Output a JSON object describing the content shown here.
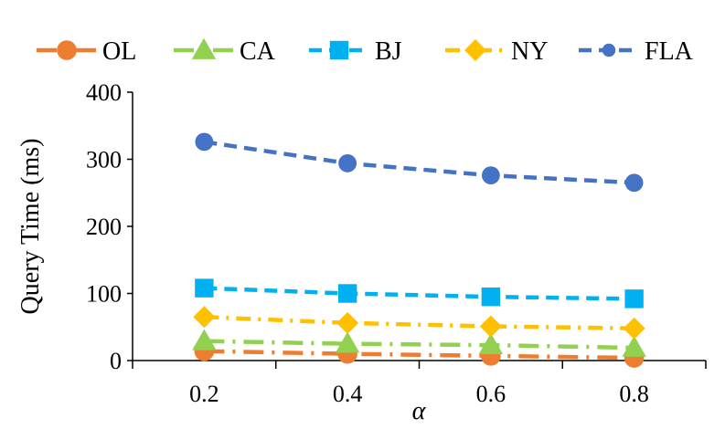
{
  "chart_data": {
    "type": "line",
    "title": "",
    "xlabel": "α",
    "ylabel": "Query Time (ms)",
    "x": [
      0.2,
      0.4,
      0.6,
      0.8
    ],
    "x_tick_labels": [
      "0.2",
      "0.4",
      "0.6",
      "0.8"
    ],
    "xlim": [
      0.1,
      0.9
    ],
    "ylim": [
      0,
      400
    ],
    "y_ticks": [
      0,
      100,
      200,
      300,
      400
    ],
    "y_tick_labels": [
      "0",
      "100",
      "200",
      "300",
      "400"
    ],
    "grid": false,
    "legend_position": "top",
    "series": [
      {
        "name": "OL",
        "values": [
          14,
          10,
          7,
          4
        ],
        "color": "#ED7D31",
        "marker": "circle",
        "dash": "long-dash-dot"
      },
      {
        "name": "CA",
        "values": [
          29,
          25,
          23,
          19
        ],
        "color": "#92D050",
        "marker": "triangle",
        "dash": "long-dash-dot"
      },
      {
        "name": "BJ",
        "values": [
          108,
          100,
          95,
          92
        ],
        "color": "#00B0F0",
        "marker": "square",
        "dash": "dash"
      },
      {
        "name": "NY",
        "values": [
          65,
          56,
          51,
          48
        ],
        "color": "#FFC000",
        "marker": "diamond",
        "dash": "dash-dot"
      },
      {
        "name": "FLA",
        "values": [
          326,
          294,
          276,
          265
        ],
        "color": "#4472C4",
        "marker": "circle",
        "dash": "dash"
      }
    ]
  }
}
